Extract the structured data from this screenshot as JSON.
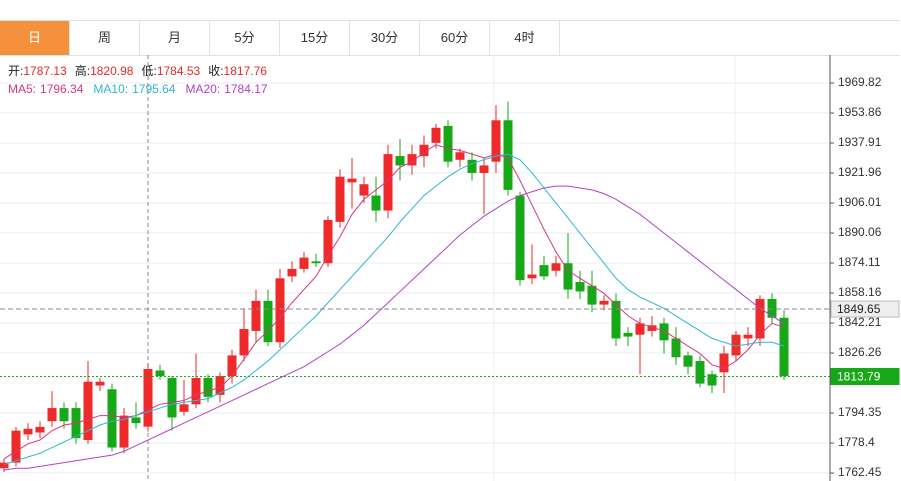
{
  "tabs": [
    "日",
    "周",
    "月",
    "5分",
    "15分",
    "30分",
    "60分",
    "4时"
  ],
  "active_tab": 0,
  "chart_data": {
    "type": "candlestick",
    "info": [
      {
        "label": "开:",
        "value": 1787.13
      },
      {
        "label": "高:",
        "value": 1820.98
      },
      {
        "label": "低:",
        "value": 1784.53
      },
      {
        "label": "收:",
        "value": 1817.76
      }
    ],
    "ylim": [
      1758.22,
      1984.71
    ],
    "yticks": [
      1969.82,
      1953.86,
      1937.91,
      1921.96,
      1906.01,
      1890.06,
      1874.11,
      1858.16,
      1842.21,
      1826.26,
      1794.35,
      1778.4,
      1762.45
    ],
    "up_color": "#ee2a2a",
    "down_color": "#17a817",
    "candles": [
      [
        1765,
        1770,
        1763,
        1768
      ],
      [
        1768,
        1787,
        1766,
        1785
      ],
      [
        1783,
        1789,
        1780,
        1786
      ],
      [
        1784,
        1790,
        1781,
        1787
      ],
      [
        1790,
        1806,
        1787,
        1797
      ],
      [
        1797,
        1800,
        1786,
        1790
      ],
      [
        1797,
        1800,
        1778,
        1781
      ],
      [
        1780,
        1822,
        1778,
        1811
      ],
      [
        1809,
        1813,
        1806,
        1811
      ],
      [
        1807,
        1810,
        1774,
        1776
      ],
      [
        1776,
        1797,
        1773,
        1793
      ],
      [
        1792,
        1800,
        1786,
        1789
      ],
      [
        1787.13,
        1820.98,
        1784.53,
        1817.76
      ],
      [
        1817,
        1820,
        1812,
        1814
      ],
      [
        1813,
        1814,
        1785,
        1792
      ],
      [
        1795,
        1812,
        1793,
        1799
      ],
      [
        1799,
        1826,
        1797,
        1813
      ],
      [
        1813,
        1815,
        1800,
        1803
      ],
      [
        1804,
        1816,
        1800,
        1814
      ],
      [
        1814,
        1828,
        1810,
        1825
      ],
      [
        1825,
        1850,
        1822,
        1839
      ],
      [
        1838,
        1860,
        1832,
        1854
      ],
      [
        1854,
        1860,
        1830,
        1832
      ],
      [
        1832,
        1871,
        1829,
        1866
      ],
      [
        1867,
        1875,
        1864,
        1871
      ],
      [
        1871,
        1880,
        1869,
        1877
      ],
      [
        1875,
        1879,
        1872,
        1874
      ],
      [
        1874,
        1899,
        1872,
        1897
      ],
      [
        1896,
        1924,
        1893,
        1920
      ],
      [
        1917,
        1930,
        1903,
        1919
      ],
      [
        1910,
        1920,
        1906,
        1916
      ],
      [
        1910,
        1920,
        1896,
        1902
      ],
      [
        1902,
        1937,
        1898,
        1932
      ],
      [
        1931,
        1940,
        1918,
        1926
      ],
      [
        1926,
        1937,
        1921,
        1932
      ],
      [
        1931,
        1942,
        1925,
        1937
      ],
      [
        1938,
        1948,
        1935,
        1946
      ],
      [
        1947,
        1950,
        1925,
        1928
      ],
      [
        1929,
        1935,
        1925,
        1933
      ],
      [
        1929,
        1933,
        1918,
        1922
      ],
      [
        1922,
        1930,
        1900,
        1926
      ],
      [
        1928,
        1958,
        1922,
        1950
      ],
      [
        1950,
        1960,
        1910,
        1913
      ],
      [
        1910,
        1912,
        1862,
        1865
      ],
      [
        1866,
        1884,
        1863,
        1868
      ],
      [
        1873,
        1878,
        1865,
        1867
      ],
      [
        1870,
        1878,
        1867,
        1874
      ],
      [
        1874,
        1890,
        1855,
        1860
      ],
      [
        1864,
        1870,
        1855,
        1859
      ],
      [
        1862,
        1870,
        1848,
        1852
      ],
      [
        1852,
        1857,
        1849,
        1854
      ],
      [
        1854,
        1858,
        1830,
        1834
      ],
      [
        1837,
        1840,
        1830,
        1835
      ],
      [
        1836,
        1845,
        1815,
        1842
      ],
      [
        1838,
        1846,
        1835,
        1841
      ],
      [
        1842,
        1845,
        1826,
        1833
      ],
      [
        1834,
        1840,
        1820,
        1824
      ],
      [
        1825,
        1827,
        1815,
        1819
      ],
      [
        1822,
        1825,
        1808,
        1810
      ],
      [
        1815,
        1817,
        1805,
        1809
      ],
      [
        1816,
        1830,
        1805,
        1826
      ],
      [
        1825,
        1838,
        1822,
        1836
      ],
      [
        1834,
        1840,
        1830,
        1836
      ],
      [
        1834,
        1857,
        1830,
        1855
      ],
      [
        1855,
        1858,
        1842,
        1845
      ],
      [
        1845,
        1849,
        1812,
        1814
      ]
    ],
    "series": [
      {
        "name": "MA5:",
        "color": "#d8367e",
        "last": 1796.34,
        "values": [
          1770,
          1774,
          1778,
          1780,
          1785,
          1788,
          1789,
          1791,
          1793,
          1793,
          1792,
          1793,
          1796,
          1799,
          1800,
          1801,
          1804,
          1806,
          1808,
          1814,
          1823,
          1832,
          1838,
          1845,
          1853,
          1860,
          1867,
          1878,
          1888,
          1900,
          1908,
          1913,
          1918,
          1925,
          1928,
          1933,
          1937,
          1935,
          1934,
          1932,
          1930,
          1932,
          1930,
          1918,
          1905,
          1892,
          1880,
          1870,
          1866,
          1862,
          1858,
          1852,
          1846,
          1842,
          1840,
          1838,
          1834,
          1830,
          1826,
          1820,
          1818,
          1822,
          1828,
          1836,
          1842,
          1840
        ]
      },
      {
        "name": "MA10:",
        "color": "#2fb6d2",
        "last": 1795.64,
        "values": [
          1767,
          1769,
          1771,
          1773,
          1776,
          1779,
          1782,
          1785,
          1788,
          1790,
          1791,
          1793,
          1795,
          1797,
          1799,
          1800,
          1801,
          1802,
          1805,
          1808,
          1812,
          1817,
          1822,
          1828,
          1834,
          1840,
          1846,
          1853,
          1860,
          1867,
          1874,
          1881,
          1888,
          1896,
          1903,
          1910,
          1915,
          1920,
          1924,
          1927,
          1929,
          1931,
          1932,
          1929,
          1922,
          1914,
          1906,
          1898,
          1890,
          1882,
          1874,
          1866,
          1860,
          1856,
          1853,
          1850,
          1846,
          1842,
          1838,
          1834,
          1832,
          1830,
          1831,
          1832,
          1832,
          1830
        ]
      },
      {
        "name": "MA20:",
        "color": "#b043c4",
        "last": 1784.17,
        "values": [
          1764,
          1765,
          1765,
          1766,
          1767,
          1768,
          1769,
          1770,
          1771,
          1772,
          1774,
          1777,
          1780,
          1783,
          1786,
          1789,
          1792,
          1795,
          1798,
          1801,
          1804,
          1807,
          1810,
          1813,
          1816,
          1819,
          1823,
          1827,
          1831,
          1836,
          1841,
          1847,
          1853,
          1859,
          1865,
          1871,
          1877,
          1883,
          1889,
          1894,
          1899,
          1903,
          1907,
          1910,
          1912,
          1914,
          1915,
          1915,
          1914,
          1913,
          1911,
          1908,
          1904,
          1900,
          1895,
          1890,
          1885,
          1880,
          1875,
          1870,
          1865,
          1860,
          1855,
          1850,
          1846,
          1842
        ]
      }
    ],
    "price_lines": [
      {
        "value": 1849.65,
        "color": "#888888",
        "box": "#eeeeee",
        "text_color": "#222222"
      },
      {
        "value": 1813.79,
        "color": "#17a817",
        "box": "#17a817",
        "text_color": "#ffffff"
      }
    ]
  }
}
